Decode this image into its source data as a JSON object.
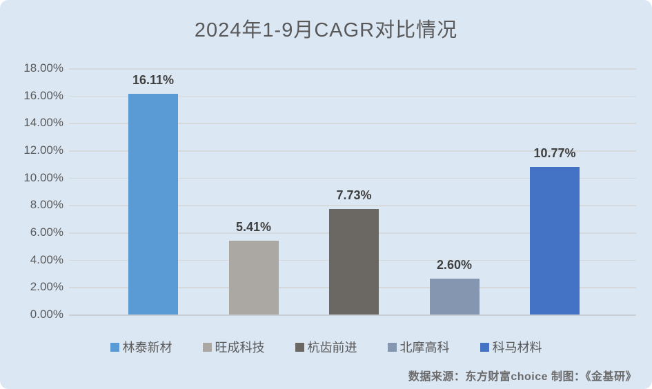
{
  "panel": {
    "background_color": "#DCE7F4",
    "gridline_color": "#D6D9DC",
    "text_color": "#595959",
    "data_label_color": "#3F3F3F"
  },
  "chart_data": {
    "type": "bar",
    "title": "2024年1-9月CAGR对比情况",
    "categories": [
      "林泰新材",
      "旺成科技",
      "杭齿前进",
      "北摩高科",
      "科马材料"
    ],
    "values": [
      16.11,
      5.41,
      7.73,
      2.6,
      10.77
    ],
    "data_labels": [
      "16.11%",
      "5.41%",
      "7.73%",
      "2.60%",
      "10.77%"
    ],
    "bar_colors": [
      "#5B9BD5",
      "#ABA7A3",
      "#6B6763",
      "#8496B0",
      "#4472C4"
    ],
    "y_tick_labels": [
      "18.00%",
      "16.00%",
      "14.00%",
      "12.00%",
      "10.00%",
      "8.00%",
      "6.00%",
      "4.00%",
      "2.00%",
      "0.00%"
    ],
    "ylim": [
      0,
      18
    ],
    "y_step": 2,
    "grid": true,
    "legend_position": "bottom",
    "xlabel": "",
    "ylabel": ""
  },
  "footer": {
    "source_label": "数据来源：东方财富choice  制图：《金基研》"
  }
}
